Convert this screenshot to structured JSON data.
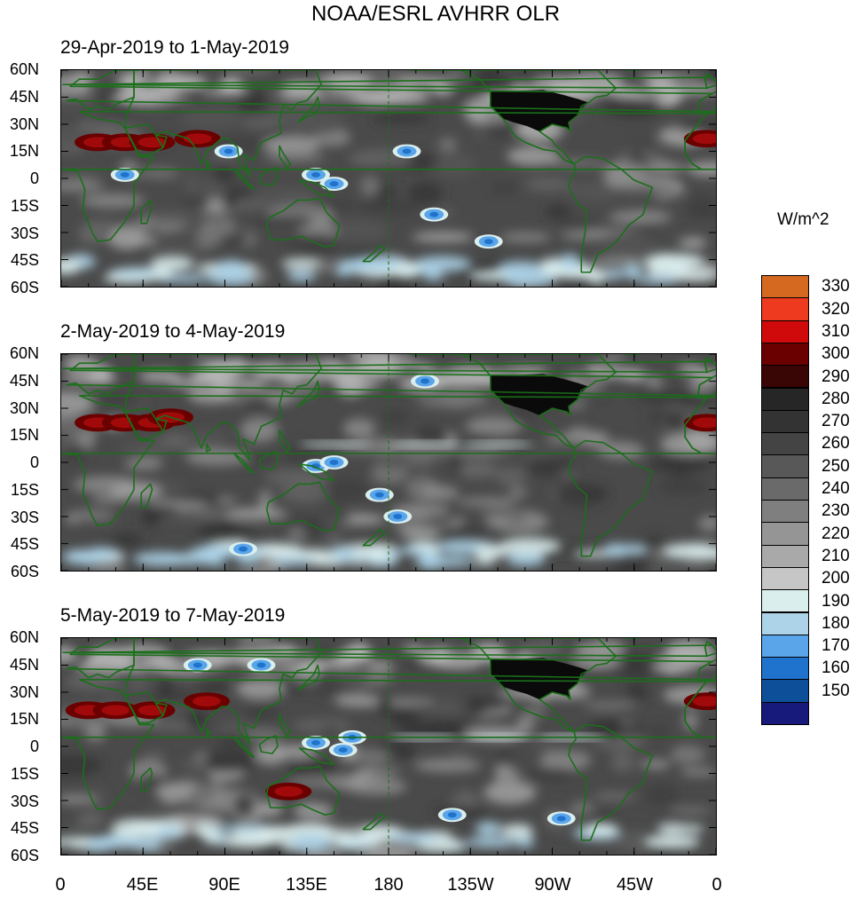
{
  "title": "NOAA/ESRL AVHRR OLR",
  "units": "W/m^2",
  "panels": [
    {
      "label": "29-Apr-2019 to 1-May-2019"
    },
    {
      "label": "2-May-2019 to 4-May-2019"
    },
    {
      "label": "5-May-2019 to 7-May-2019"
    }
  ],
  "lat_labels": [
    "60N",
    "45N",
    "30N",
    "15N",
    "0",
    "15S",
    "30S",
    "45S",
    "60S"
  ],
  "lon_labels": [
    "0",
    "45E",
    "90E",
    "135E",
    "180",
    "135W",
    "90W",
    "45W",
    "0"
  ],
  "colorbar": {
    "labels": [
      "330",
      "320",
      "310",
      "300",
      "290",
      "280",
      "270",
      "260",
      "250",
      "240",
      "230",
      "220",
      "210",
      "200",
      "190",
      "180",
      "170",
      "160",
      "150"
    ],
    "colors": [
      "#d4691f",
      "#ee3a1e",
      "#d00a0a",
      "#6a0000",
      "#3a0505",
      "#262626",
      "#333333",
      "#444444",
      "#585858",
      "#6a6a6a",
      "#7f7f7f",
      "#959595",
      "#a9a9a9",
      "#c6c6c6",
      "#dbeeee",
      "#acd3e8",
      "#5aa5e9",
      "#1f73cc",
      "#0e4f9a",
      "#17197b"
    ]
  },
  "colors": {
    "coast": "#1b6f1b",
    "land_dark": "#0a0a0a"
  },
  "panel_features": [
    {
      "hot_patches": [
        [
          20,
          20
        ],
        [
          35,
          20
        ],
        [
          50,
          20
        ],
        [
          75,
          22
        ],
        [
          355,
          22
        ]
      ],
      "cold_patches": [
        [
          35,
          2
        ],
        [
          92,
          15
        ],
        [
          140,
          2
        ],
        [
          150,
          -3
        ],
        [
          190,
          15
        ],
        [
          235,
          -35
        ],
        [
          205,
          -20
        ]
      ]
    },
    {
      "hot_patches": [
        [
          20,
          22
        ],
        [
          35,
          22
        ],
        [
          50,
          22
        ],
        [
          60,
          25
        ],
        [
          355,
          22
        ]
      ],
      "cold_patches": [
        [
          140,
          -2
        ],
        [
          150,
          0
        ],
        [
          175,
          -18
        ],
        [
          185,
          -30
        ],
        [
          100,
          -48
        ],
        [
          200,
          45
        ]
      ],
      "light_bands": [
        [
          150,
          10
        ],
        [
          200,
          10
        ],
        [
          240,
          10
        ]
      ]
    },
    {
      "hot_patches": [
        [
          15,
          20
        ],
        [
          30,
          20
        ],
        [
          50,
          20
        ],
        [
          80,
          25
        ],
        [
          355,
          25
        ],
        [
          125,
          -25
        ]
      ],
      "cold_patches": [
        [
          140,
          2
        ],
        [
          155,
          -2
        ],
        [
          160,
          5
        ],
        [
          110,
          45
        ],
        [
          75,
          45
        ],
        [
          215,
          -38
        ],
        [
          275,
          -40
        ]
      ],
      "light_bands": [
        [
          200,
          5
        ],
        [
          240,
          5
        ],
        [
          280,
          5
        ]
      ]
    }
  ]
}
